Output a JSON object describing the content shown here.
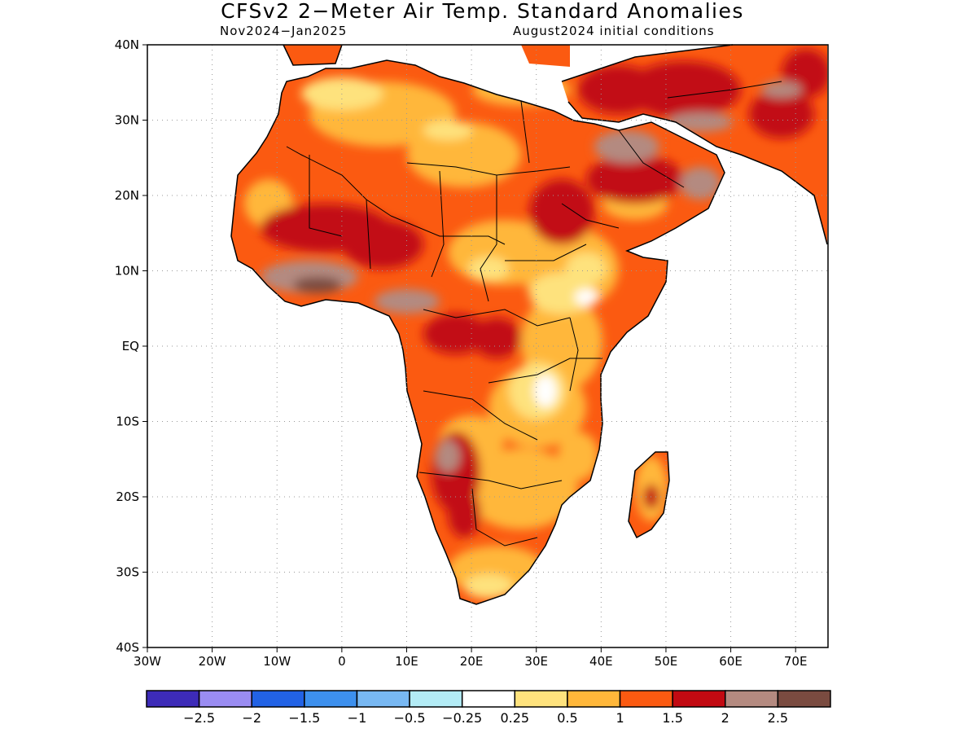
{
  "title": "CFSv2 2−Meter Air Temp. Standard Anomalies",
  "subtitle_left": "Nov2024−Jan2025",
  "subtitle_right": "August2024 initial conditions",
  "map": {
    "lon_range": [
      -30,
      75
    ],
    "lat_range": [
      -40,
      40
    ],
    "lat_ticks": [
      "40N",
      "30N",
      "20N",
      "10N",
      "EQ",
      "10S",
      "20S",
      "30S",
      "40S"
    ],
    "lon_ticks": [
      "30W",
      "20W",
      "10W",
      "0",
      "10E",
      "20E",
      "30E",
      "40E",
      "50E",
      "60E",
      "70E"
    ],
    "grid": true
  },
  "legend": {
    "colors": [
      "#3d2bb8",
      "#9a8cf2",
      "#2262e5",
      "#3d90ee",
      "#78b8f3",
      "#b3ecf6",
      "#ffffff",
      "#fee27d",
      "#ffb73a",
      "#fb5a11",
      "#c20a12",
      "#b48a80",
      "#7a4b40"
    ],
    "labels": [
      "−2.5",
      "−2",
      "−1.5",
      "−1",
      "−0.5",
      "−0.25",
      "0.25",
      "0.5",
      "1",
      "1.5",
      "2",
      "2.5"
    ]
  }
}
